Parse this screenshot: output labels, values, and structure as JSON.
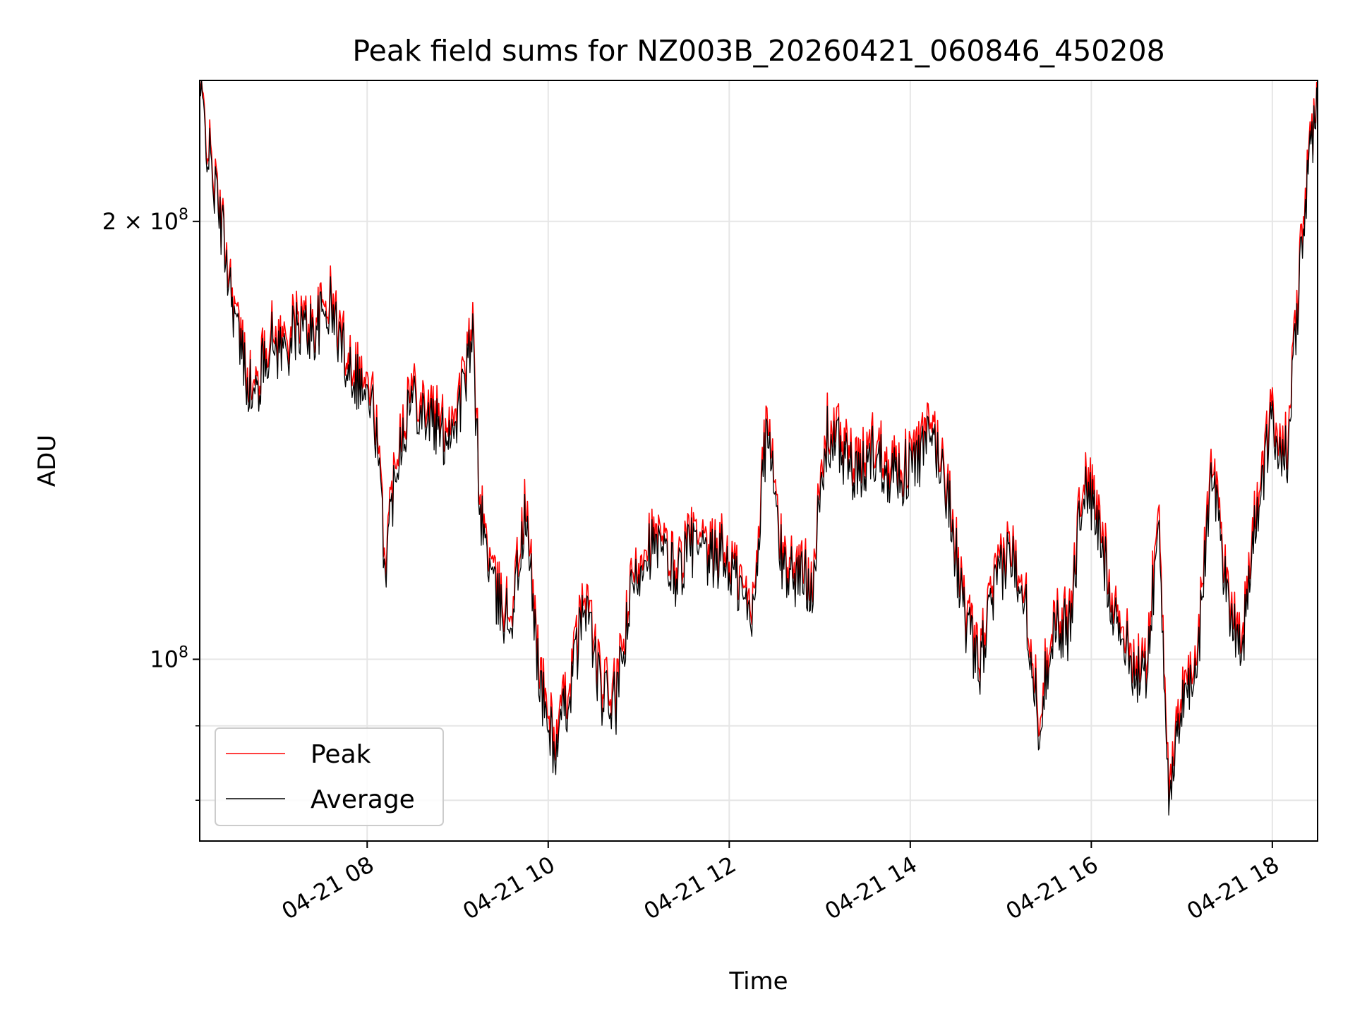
{
  "chart_data": {
    "type": "line",
    "title": "Peak field sums for NZ003B_20260421_060846_450208",
    "xlabel": "Time",
    "ylabel": "ADU",
    "yscale": "log",
    "ylim": [
      75000000,
      250000000
    ],
    "xlim": [
      "2026-04-21 06:09",
      "2026-04-21 18:30"
    ],
    "x_ticks": [
      "04-21 08",
      "04-21 10",
      "04-21 12",
      "04-21 14",
      "04-21 16",
      "04-21 18"
    ],
    "y_ticks": [
      {
        "value": 200000000,
        "mantissa": "2",
        "exponent": "8"
      },
      {
        "value": 100000000,
        "mantissa": "",
        "exponent": "8"
      }
    ],
    "grid": true,
    "legend_position": "lower-left",
    "x": [
      "2026-04-21 06:09",
      "2026-04-21 06:15",
      "2026-04-21 06:25",
      "2026-04-21 06:35",
      "2026-04-21 06:45",
      "2026-04-21 06:55",
      "2026-04-21 07:05",
      "2026-04-21 07:15",
      "2026-04-21 07:25",
      "2026-04-21 07:35",
      "2026-04-21 07:45",
      "2026-04-21 07:55",
      "2026-04-21 08:05",
      "2026-04-21 08:12",
      "2026-04-21 08:20",
      "2026-04-21 08:30",
      "2026-04-21 08:40",
      "2026-04-21 08:50",
      "2026-04-21 09:00",
      "2026-04-21 09:10",
      "2026-04-21 09:15",
      "2026-04-21 09:25",
      "2026-04-21 09:35",
      "2026-04-21 09:45",
      "2026-04-21 09:55",
      "2026-04-21 10:05",
      "2026-04-21 10:15",
      "2026-04-21 10:25",
      "2026-04-21 10:35",
      "2026-04-21 10:45",
      "2026-04-21 10:55",
      "2026-04-21 11:05",
      "2026-04-21 11:15",
      "2026-04-21 11:25",
      "2026-04-21 11:35",
      "2026-04-21 11:45",
      "2026-04-21 11:55",
      "2026-04-21 12:05",
      "2026-04-21 12:15",
      "2026-04-21 12:25",
      "2026-04-21 12:35",
      "2026-04-21 12:45",
      "2026-04-21 12:55",
      "2026-04-21 13:05",
      "2026-04-21 13:15",
      "2026-04-21 13:25",
      "2026-04-21 13:35",
      "2026-04-21 13:45",
      "2026-04-21 13:55",
      "2026-04-21 14:05",
      "2026-04-21 14:15",
      "2026-04-21 14:25",
      "2026-04-21 14:35",
      "2026-04-21 14:45",
      "2026-04-21 14:55",
      "2026-04-21 15:05",
      "2026-04-21 15:15",
      "2026-04-21 15:25",
      "2026-04-21 15:35",
      "2026-04-21 15:45",
      "2026-04-21 15:55",
      "2026-04-21 16:05",
      "2026-04-21 16:15",
      "2026-04-21 16:25",
      "2026-04-21 16:35",
      "2026-04-21 16:45",
      "2026-04-21 16:52",
      "2026-04-21 17:00",
      "2026-04-21 17:10",
      "2026-04-21 17:20",
      "2026-04-21 17:30",
      "2026-04-21 17:40",
      "2026-04-21 17:50",
      "2026-04-21 18:00",
      "2026-04-21 18:10",
      "2026-04-21 18:20",
      "2026-04-21 18:30"
    ],
    "series": [
      {
        "name": "Peak",
        "color": "#ff0000",
        "values": [
          248000000,
          225000000,
          196000000,
          168000000,
          152000000,
          168000000,
          166000000,
          172000000,
          170000000,
          178000000,
          165000000,
          158000000,
          150000000,
          118000000,
          142000000,
          155000000,
          150000000,
          145000000,
          150000000,
          168000000,
          128000000,
          112000000,
          108000000,
          128000000,
          97000000,
          88000000,
          98000000,
          112000000,
          96000000,
          95000000,
          112000000,
          122000000,
          120000000,
          116000000,
          122000000,
          118000000,
          120000000,
          115000000,
          108000000,
          148000000,
          118000000,
          116000000,
          115000000,
          145000000,
          142000000,
          135000000,
          142000000,
          138000000,
          136000000,
          140000000,
          145000000,
          132000000,
          110000000,
          100000000,
          112000000,
          120000000,
          115000000,
          92000000,
          108000000,
          106000000,
          136000000,
          125000000,
          110000000,
          102000000,
          98000000,
          126000000,
          80000000,
          96000000,
          100000000,
          140000000,
          112000000,
          104000000,
          130000000,
          148000000,
          140000000,
          200000000,
          248000000
        ]
      },
      {
        "name": "Average",
        "color": "#000000",
        "values": [
          246000000,
          222000000,
          194000000,
          165000000,
          150000000,
          165000000,
          163000000,
          169000000,
          168000000,
          175000000,
          162000000,
          155000000,
          147000000,
          116000000,
          139000000,
          152000000,
          147000000,
          142000000,
          147000000,
          165000000,
          126000000,
          110000000,
          106000000,
          125000000,
          95000000,
          86000000,
          96000000,
          110000000,
          94000000,
          93000000,
          110000000,
          120000000,
          118000000,
          114000000,
          120000000,
          116000000,
          118000000,
          113000000,
          106000000,
          145000000,
          116000000,
          114000000,
          113000000,
          142000000,
          139000000,
          132000000,
          139000000,
          135000000,
          134000000,
          137000000,
          142000000,
          130000000,
          108000000,
          98000000,
          110000000,
          118000000,
          113000000,
          90000000,
          106000000,
          104000000,
          133000000,
          122000000,
          108000000,
          100000000,
          96000000,
          123000000,
          78000000,
          94000000,
          98000000,
          137000000,
          110000000,
          102000000,
          127000000,
          145000000,
          137000000,
          196000000,
          246000000
        ]
      }
    ]
  }
}
